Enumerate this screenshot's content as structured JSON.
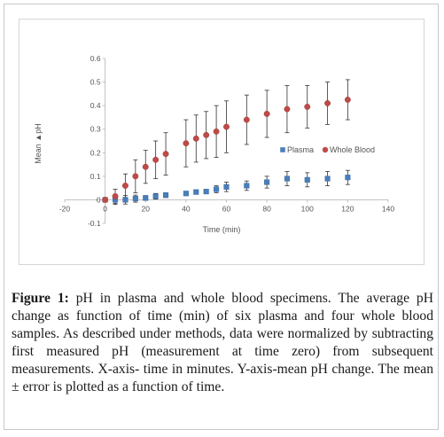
{
  "caption": {
    "label": "Figure 1:",
    "text": " pH in plasma and whole blood specimens. The average pH change as function of time (min) of six plasma and four whole blood samples. As described under methods, data were normalized by subtracting first measured pH (measurement at time zero) from subsequent measurements. X-axis- time in minutes. Y-axis-mean pH change. The mean ± error is plotted as a function of time."
  },
  "chart_data": {
    "type": "scatter",
    "title": "",
    "xlabel": "Time (min)",
    "ylabel": "Mean ▲pH",
    "xlim": [
      -20,
      140
    ],
    "ylim": [
      -0.1,
      0.6
    ],
    "xticks": [
      -20,
      0,
      20,
      40,
      60,
      80,
      100,
      120,
      140
    ],
    "xtick_labels": [
      "-20",
      "0",
      "20",
      "40",
      "60",
      "80",
      "100",
      "120",
      "140"
    ],
    "yticks": [
      -0.1,
      0,
      0.1,
      0.2,
      0.3,
      0.4,
      0.5,
      0.6
    ],
    "ytick_labels": [
      "-0.1",
      "0",
      "0.1",
      "0.2",
      "0.3",
      "0.4",
      "0.5",
      "0.6"
    ],
    "grid": false,
    "legend_position": "right",
    "series": [
      {
        "name": "Plasma",
        "color": "#4a7ebb",
        "marker": "square",
        "x": [
          0,
          5,
          10,
          15,
          20,
          25,
          30,
          40,
          45,
          50,
          55,
          60,
          70,
          80,
          90,
          100,
          110,
          120
        ],
        "y": [
          0,
          0.0,
          0.0,
          0.005,
          0.008,
          0.015,
          0.02,
          0.027,
          0.033,
          0.035,
          0.045,
          0.055,
          0.06,
          0.075,
          0.09,
          0.085,
          0.09,
          0.095
        ],
        "err": [
          0,
          0.02,
          0.018,
          0.015,
          0.01,
          0.012,
          0.01,
          0.008,
          0.007,
          0.008,
          0.015,
          0.02,
          0.02,
          0.025,
          0.03,
          0.03,
          0.03,
          0.03
        ]
      },
      {
        "name": "Whole Blood",
        "color": "#be4b48",
        "marker": "circle",
        "x": [
          0,
          5,
          10,
          15,
          20,
          25,
          30,
          40,
          45,
          50,
          55,
          60,
          70,
          80,
          90,
          100,
          110,
          120
        ],
        "y": [
          0,
          0.015,
          0.06,
          0.1,
          0.14,
          0.17,
          0.195,
          0.24,
          0.26,
          0.275,
          0.29,
          0.31,
          0.34,
          0.365,
          0.385,
          0.395,
          0.41,
          0.425
        ],
        "err": [
          0,
          0.03,
          0.05,
          0.07,
          0.07,
          0.08,
          0.09,
          0.1,
          0.1,
          0.1,
          0.11,
          0.11,
          0.105,
          0.1,
          0.1,
          0.09,
          0.09,
          0.085
        ]
      }
    ]
  }
}
